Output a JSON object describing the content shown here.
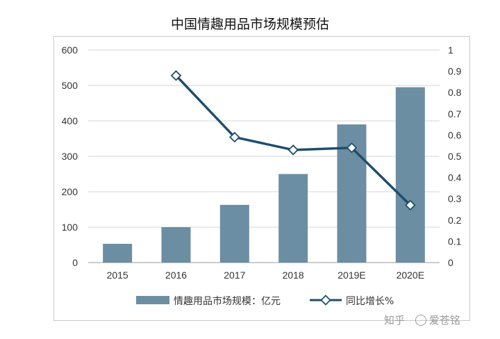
{
  "chart_data": {
    "type": "bar",
    "title": "中国情趣用品市场规模预估",
    "categories": [
      "2015",
      "2016",
      "2017",
      "2018",
      "2019E",
      "2020E"
    ],
    "series": [
      {
        "name": "情趣用品市场规模：亿元",
        "type": "bar",
        "axis": "left",
        "values": [
          53,
          100,
          163,
          250,
          390,
          495
        ],
        "color": "#6b8ea3"
      },
      {
        "name": "同比增长%",
        "type": "line",
        "axis": "right",
        "values": [
          null,
          0.88,
          0.59,
          0.53,
          0.54,
          0.27
        ],
        "color": "#1f4e6b"
      }
    ],
    "y_left": {
      "lim": [
        0,
        600
      ],
      "ticks": [
        0,
        100,
        200,
        300,
        400,
        500,
        600
      ]
    },
    "y_right": {
      "lim": [
        0,
        1
      ],
      "ticks": [
        "0",
        "0.1",
        "0.2",
        "0.3",
        "0.4",
        "0.5",
        "0.6",
        "0.7",
        "0.8",
        "0.9",
        "1"
      ]
    },
    "grid": true,
    "legend": "bottom"
  },
  "watermark": {
    "text_left": "知乎",
    "text_right": "爱苍铭"
  }
}
